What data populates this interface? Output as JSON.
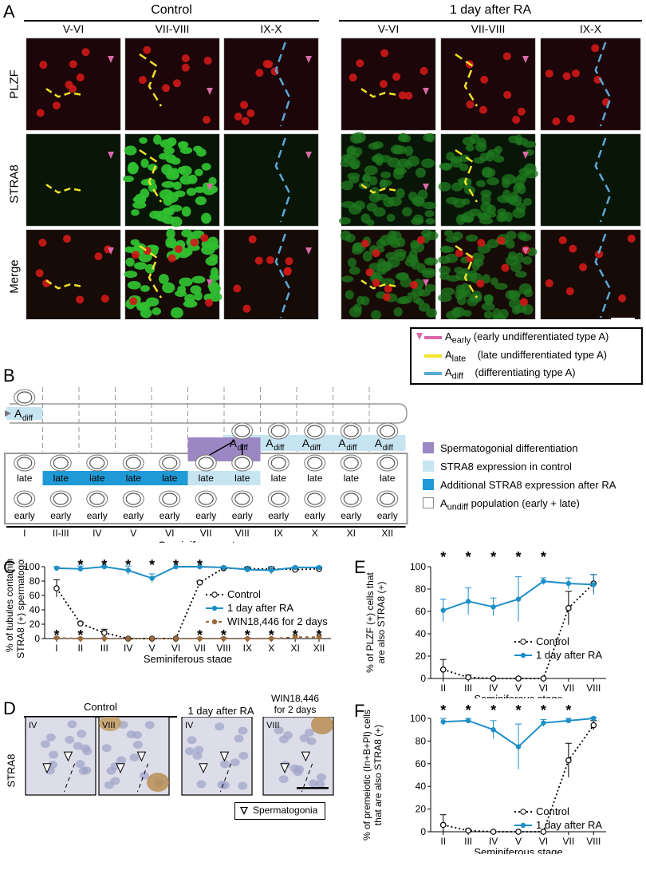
{
  "panel_a": {
    "label": "A",
    "groups": [
      {
        "title": "Control",
        "stages": [
          "V-VI",
          "VII-VIII",
          "IX-X"
        ]
      },
      {
        "title": "1 day after RA",
        "stages": [
          "V-VI",
          "VII-VIII",
          "IX-X"
        ]
      }
    ],
    "rows": [
      "PLZF",
      "STRA8",
      "Merge"
    ],
    "legend": [
      {
        "sym": "A",
        "sub": "early",
        "desc": "(early undifferentiated type A)",
        "color": "#d86aa8"
      },
      {
        "sym": "A",
        "sub": "late",
        "desc": "(late undifferentiated type A)",
        "color": "#f2e22a"
      },
      {
        "sym": "A",
        "sub": "diff",
        "desc": "(differentiating type A)",
        "color": "#5aa9d8"
      }
    ]
  },
  "panel_b": {
    "label": "B",
    "adiff_top": "diff",
    "stages": [
      "I",
      "II-III",
      "IV",
      "V",
      "VI",
      "VII",
      "VIII",
      "IX",
      "X",
      "XI",
      "XII"
    ],
    "row_labels": {
      "adiff": "diff",
      "late": "late",
      "early": "early"
    },
    "xlabel": "Seminiferous stage",
    "legend": [
      {
        "text": "Spermatogonial differentiation",
        "color": "#9b87c4"
      },
      {
        "text": "STRA8 expression in control",
        "color": "#c7e4f1"
      },
      {
        "text": "Additional STRA8 expression after RA",
        "color": "#1f9ad6"
      },
      {
        "text_pre": "A",
        "text_sub": "undiff",
        "text_post": " population (early + late)",
        "color": "#ffffff"
      }
    ]
  },
  "panel_c": {
    "label": "C",
    "chart_data": {
      "type": "line",
      "ylabel": "% of tubules containing STRA8 (+) spermatogonia",
      "xlabel": "Seminiferous stage",
      "categories": [
        "I",
        "II",
        "III",
        "IV",
        "V",
        "VI",
        "VII",
        "VIII",
        "IX",
        "X",
        "XI",
        "XII"
      ],
      "ylim": [
        0,
        100
      ],
      "yticks": [
        "0",
        "20",
        "40",
        "60",
        "80",
        "100"
      ],
      "series": [
        {
          "name": "Control",
          "values": [
            70,
            21,
            8,
            0,
            0,
            0,
            78,
            98,
            97,
            97,
            96,
            97
          ],
          "err": [
            12,
            2,
            5,
            0,
            0,
            0,
            2,
            1,
            2,
            2,
            3,
            2
          ],
          "color": "#000000",
          "style": "dotted-open"
        },
        {
          "name": "1 day after RA",
          "values": [
            98,
            97,
            100,
            95,
            84,
            100,
            100,
            99,
            96,
            95,
            99,
            99
          ],
          "err": [
            2,
            4,
            1,
            6,
            6,
            0,
            0,
            1,
            4,
            5,
            1,
            1
          ],
          "color": "#1f8fc8",
          "style": "solid"
        },
        {
          "name": "WIN18,446 for 2 days",
          "values": [
            1,
            0,
            0,
            0,
            0,
            0,
            0,
            0,
            0,
            0,
            2,
            2
          ],
          "err": [
            1,
            1,
            1,
            0,
            0,
            0,
            1,
            2,
            1,
            1,
            2,
            2
          ],
          "color": "#9a6a3a",
          "style": "dashed"
        }
      ],
      "stars_top": [
        "II",
        "III",
        "IV",
        "V",
        "VI",
        "VII"
      ],
      "stars_bottom": [
        "I",
        "II",
        "VII",
        "VIII",
        "IX",
        "X",
        "XI",
        "XII"
      ]
    }
  },
  "panel_d": {
    "label": "D",
    "groups": [
      "Control",
      "1 day after RA",
      "WIN18,446\nfor 2 days"
    ],
    "group_line1": "WIN18,446",
    "group_line2": "for 2 days",
    "row": "STRA8",
    "stages": [
      "IV",
      "VIII",
      "IV",
      "VIII"
    ],
    "legend": "Spermatogonia"
  },
  "panel_e": {
    "label": "E",
    "chart_data": {
      "type": "line",
      "ylabel": "% of PLZF (+) cells that are also STRA8 (+)",
      "xlabel": "Seminiferous stage",
      "categories": [
        "II",
        "III",
        "IV",
        "V",
        "VI",
        "VII",
        "VIII"
      ],
      "ylim": [
        0,
        100
      ],
      "yticks": [
        "0",
        "20",
        "40",
        "60",
        "80",
        "100"
      ],
      "series": [
        {
          "name": "Control",
          "values": [
            8,
            1,
            0,
            0,
            0,
            63,
            85
          ],
          "err": [
            9,
            2,
            0,
            0,
            0,
            15,
            8
          ],
          "color": "#000000",
          "style": "dotted-open"
        },
        {
          "name": "1 day after RA",
          "values": [
            61,
            69,
            64,
            71,
            87,
            85,
            84
          ],
          "err": [
            10,
            12,
            8,
            20,
            3,
            5,
            9
          ],
          "color": "#1f8fc8",
          "style": "solid"
        }
      ],
      "stars": [
        "II",
        "III",
        "IV",
        "V",
        "VI"
      ]
    }
  },
  "panel_f": {
    "label": "F",
    "chart_data": {
      "type": "line",
      "ylabel": "% of premeiotic (In+B+Pl) cells that are also STRA8 (+)",
      "xlabel": "Seminiferous stage",
      "categories": [
        "II",
        "III",
        "IV",
        "V",
        "VI",
        "VII",
        "VIII"
      ],
      "ylim": [
        0,
        100
      ],
      "yticks": [
        "0",
        "20",
        "40",
        "60",
        "80",
        "100"
      ],
      "series": [
        {
          "name": "Control",
          "values": [
            6,
            1,
            0,
            0,
            0,
            63,
            94
          ],
          "err": [
            9,
            1,
            0,
            0,
            0,
            15,
            4
          ],
          "color": "#000000",
          "style": "dotted-open"
        },
        {
          "name": "1 day after RA",
          "values": [
            97,
            98,
            90,
            75,
            96,
            98,
            100
          ],
          "err": [
            3,
            2,
            8,
            20,
            3,
            2,
            1
          ],
          "color": "#1f8fc8",
          "style": "solid"
        }
      ],
      "stars": [
        "II",
        "III",
        "IV",
        "V",
        "VI",
        "VII"
      ]
    }
  }
}
